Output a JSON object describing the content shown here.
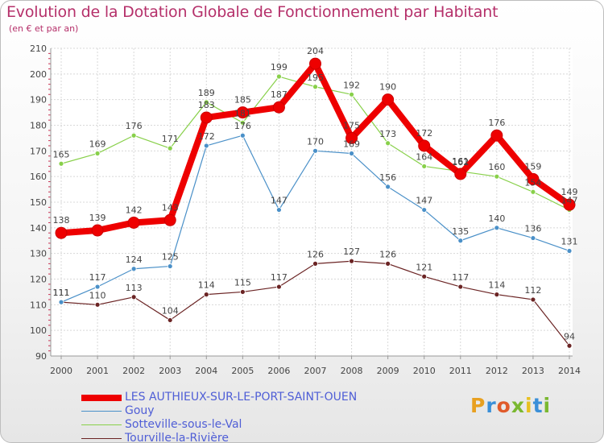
{
  "header": {
    "title": "Evolution de la Dotation Globale de Fonctionnement par Habitant",
    "subtitle": "(en € et par an)"
  },
  "logo": {
    "text": "Proxiti",
    "colors": [
      "#e8a020",
      "#3a8fd8",
      "#e05a2a",
      "#7ab830",
      "#e8c020",
      "#3a8fd8",
      "#7ab830"
    ]
  },
  "chart_data": {
    "type": "line",
    "x": [
      "2000",
      "2001",
      "2002",
      "2003",
      "2004",
      "2005",
      "2006",
      "2007",
      "2008",
      "2009",
      "2010",
      "2011",
      "2012",
      "2013",
      "2014"
    ],
    "ylim": [
      90,
      210
    ],
    "yticks": [
      "90",
      "100",
      "110",
      "120",
      "130",
      "140",
      "150",
      "160",
      "170",
      "180",
      "190",
      "200",
      "210"
    ],
    "grid": true,
    "legend_position": "bottom",
    "series": [
      {
        "name": "Tourville-la-Rivière",
        "color": "#6b2424",
        "values": [
          111,
          110,
          113,
          104,
          114,
          115,
          117,
          126,
          127,
          126,
          121,
          117,
          114,
          112,
          94
        ]
      },
      {
        "name": "Gouy",
        "color": "#4a90c8",
        "values": [
          111,
          117,
          124,
          125,
          172,
          176,
          147,
          170,
          169,
          156,
          147,
          135,
          140,
          136,
          131
        ]
      },
      {
        "name": "Sotteville-sous-le-Val",
        "color": "#88d04a",
        "values": [
          165,
          169,
          176,
          171,
          189,
          181,
          199,
          195,
          192,
          173,
          164,
          162,
          160,
          154,
          147
        ]
      },
      {
        "name": "LES AUTHIEUX-SUR-LE-PORT-SAINT-OUEN",
        "color": "#ee0000",
        "values": [
          138,
          139,
          142,
          143,
          183,
          185,
          187,
          204,
          175,
          190,
          172,
          161,
          176,
          159,
          149
        ]
      }
    ]
  }
}
